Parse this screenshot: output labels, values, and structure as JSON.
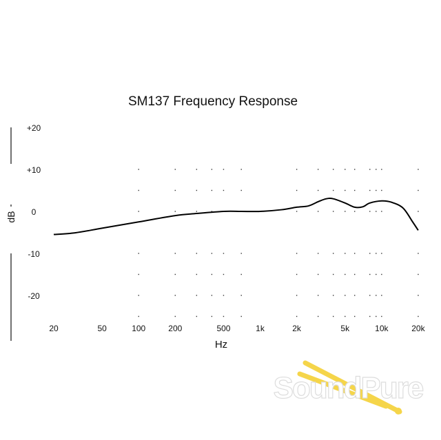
{
  "chart_data": {
    "type": "line",
    "title": "SM137 Frequency Response",
    "xlabel": "Hz",
    "ylabel": "dB",
    "xscale": "log",
    "xlim": [
      20,
      20000
    ],
    "ylim": [
      -25,
      20
    ],
    "x_ticks": [
      {
        "v": 20,
        "l": "20"
      },
      {
        "v": 50,
        "l": "50"
      },
      {
        "v": 100,
        "l": "100"
      },
      {
        "v": 200,
        "l": "200"
      },
      {
        "v": 500,
        "l": "500"
      },
      {
        "v": 1000,
        "l": "1k"
      },
      {
        "v": 2000,
        "l": "2k"
      },
      {
        "v": 5000,
        "l": "5k"
      },
      {
        "v": 10000,
        "l": "10k"
      },
      {
        "v": 20000,
        "l": "20k"
      }
    ],
    "y_ticks": [
      {
        "v": 20,
        "l": "+20"
      },
      {
        "v": 10,
        "l": "+10"
      },
      {
        "v": 0,
        "l": "0"
      },
      {
        "v": -10,
        "l": "-10"
      },
      {
        "v": -20,
        "l": "-20"
      }
    ],
    "grid": "dotted",
    "grid_x": [
      100,
      200,
      300,
      400,
      500,
      700,
      2000,
      3000,
      4000,
      5000,
      6000,
      8000,
      9000,
      10000,
      20000
    ],
    "grid_y": [
      10,
      5,
      0,
      -10,
      -15,
      -20,
      -25
    ],
    "series": [
      {
        "name": "SM137",
        "x": [
          20,
          30,
          50,
          100,
          200,
          300,
          500,
          700,
          1000,
          1500,
          2000,
          2500,
          3000,
          3500,
          4000,
          5000,
          6000,
          7000,
          8000,
          10000,
          12000,
          15000,
          18000,
          20000
        ],
        "y": [
          -5.5,
          -5.1,
          -4,
          -2.5,
          -1,
          -0.5,
          0,
          0,
          0,
          0.4,
          1,
          1.3,
          2.3,
          3,
          3,
          2,
          1,
          1.1,
          2,
          2.5,
          2.2,
          0.8,
          -2.5,
          -4.5
        ]
      }
    ]
  },
  "logo": {
    "text": "SoundPure",
    "color": "#f5d54a"
  }
}
